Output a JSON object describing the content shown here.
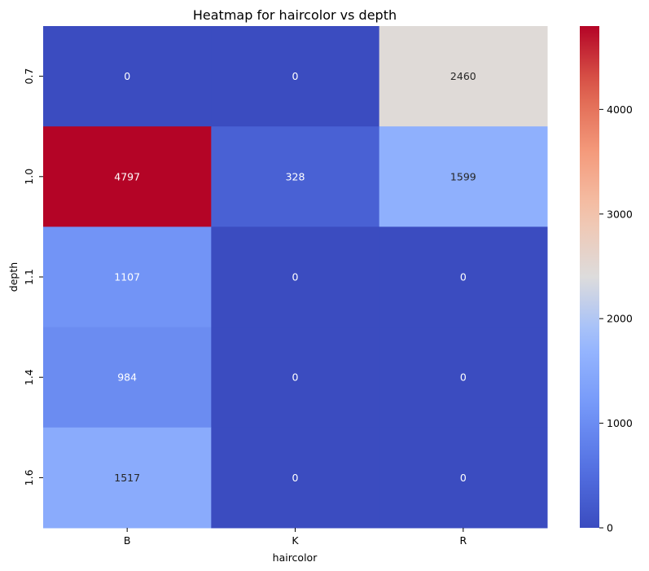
{
  "chart_data": {
    "type": "heatmap",
    "title": "Heatmap for haircolor vs depth",
    "xlabel": "haircolor",
    "ylabel": "depth",
    "x_categories": [
      "B",
      "K",
      "R"
    ],
    "y_categories": [
      "0.7",
      "1.0",
      "1.1",
      "1.4",
      "1.6"
    ],
    "values": [
      [
        0,
        0,
        2460
      ],
      [
        4797,
        328,
        1599
      ],
      [
        1107,
        0,
        0
      ],
      [
        984,
        0,
        0
      ],
      [
        1517,
        0,
        0
      ]
    ],
    "value_labels": [
      [
        "0",
        "0",
        "2460"
      ],
      [
        "4797",
        "328",
        "1599"
      ],
      [
        "1107",
        "0",
        "0"
      ],
      [
        "984",
        "0",
        "0"
      ],
      [
        "1517",
        "0",
        "0"
      ]
    ],
    "colormap": "coolwarm",
    "vmin": 0,
    "vmax": 4797,
    "colorbar_ticks": [
      0,
      1000,
      2000,
      3000,
      4000
    ],
    "colorbar_tick_labels": [
      "0",
      "1000",
      "2000",
      "3000",
      "4000"
    ]
  }
}
